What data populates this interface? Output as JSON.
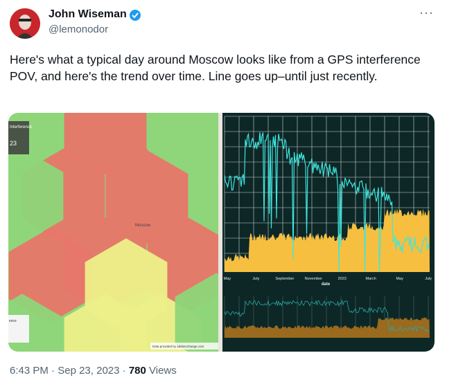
{
  "author": {
    "name": "John Wiseman",
    "handle": "@lemonodor"
  },
  "more_button": "···",
  "tweet": {
    "text": "Here's what a typical day around Moscow looks like from a GPS interference POV, and here's the trend over time. Line goes up–until just recently."
  },
  "map": {
    "legend_title": "Interference",
    "legend_value": "23",
    "legend_bottom": "ence",
    "city": "Moscow",
    "attribution": "Data provided by adsbexchange.com"
  },
  "chart_image": {
    "x_labels": [
      "May",
      "July",
      "September",
      "November",
      "2023",
      "March",
      "May",
      "July"
    ],
    "x_axis_title": "date"
  },
  "footer": {
    "time": "6:43 PM",
    "separator": "·",
    "date": "Sep 23, 2023",
    "views": "780",
    "views_label": "Views"
  }
}
